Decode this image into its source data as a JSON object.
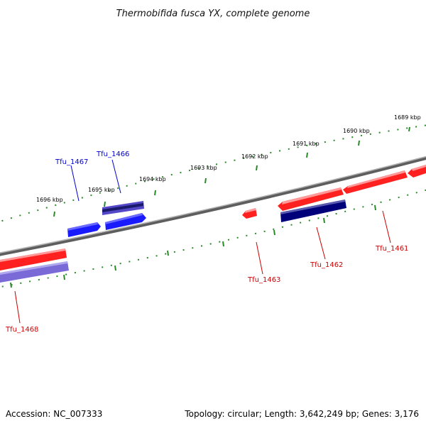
{
  "title": "Thermobifida fusca YX, complete genome",
  "footer": {
    "accession": "Accession: NC_007333",
    "topology": "Topology: circular; Length: 3,642,249 bp; Genes: 3,176"
  },
  "colors": {
    "backbone": "#8a8a8a",
    "tick": "#2a8a2a",
    "gene_red": "#ff2020",
    "gene_blue": "#1a1aff",
    "gene_navy": "#00007a",
    "gene_lavender": "#7a6ad8",
    "label_red": "#cc0000",
    "label_blue": "#0000cc"
  },
  "scale_labels": [
    "1689 kbp",
    "1690 kbp",
    "1691 kbp",
    "1692 kbp",
    "1693 kbp",
    "1694 kbp",
    "1695 kbp",
    "1696 kbp"
  ],
  "genes": [
    {
      "id": "Tfu_1461",
      "label": "Tfu_1461",
      "strand": "reverse"
    },
    {
      "id": "Tfu_1462",
      "label": "Tfu_1462",
      "strand": "reverse"
    },
    {
      "id": "Tfu_1463",
      "label": "Tfu_1463",
      "strand": "reverse"
    },
    {
      "id": "Tfu_1466",
      "label": "Tfu_1466",
      "strand": "forward"
    },
    {
      "id": "Tfu_1467",
      "label": "Tfu_1467",
      "strand": "forward"
    },
    {
      "id": "Tfu_1468",
      "label": "Tfu_1468",
      "strand": "reverse"
    }
  ]
}
